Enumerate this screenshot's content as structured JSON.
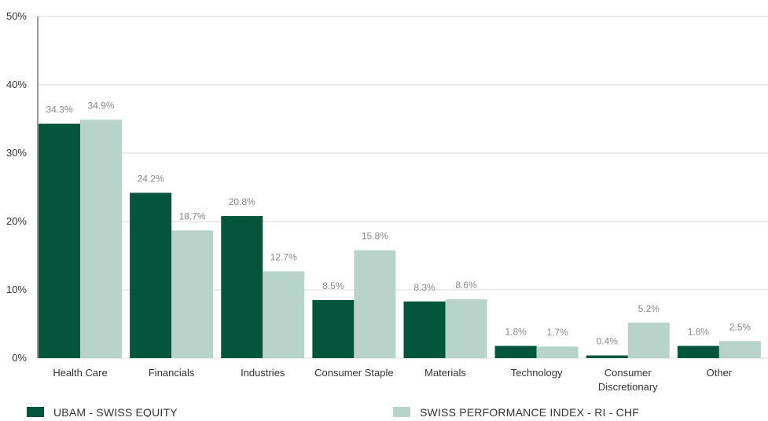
{
  "chart_data": {
    "type": "bar",
    "categories": [
      [
        "Health Care"
      ],
      [
        "Financials"
      ],
      [
        "Industries"
      ],
      [
        "Consumer Staple"
      ],
      [
        "Materials"
      ],
      [
        "Technology"
      ],
      [
        "Consumer",
        "Discretionary"
      ],
      [
        "Other"
      ]
    ],
    "series": [
      {
        "name": "UBAM - SWISS EQUITY",
        "color": "#03563b",
        "values": [
          34.3,
          24.2,
          20.8,
          8.5,
          8.3,
          1.8,
          0.4,
          1.8
        ],
        "labels": [
          "34.3%",
          "24.2%",
          "20.8%",
          "8.5%",
          "8.3%",
          "1.8%",
          "0.4%",
          "1.8%"
        ]
      },
      {
        "name": "SWISS PERFORMANCE INDEX - RI - CHF",
        "color": "#b8d3c9",
        "values": [
          34.9,
          18.7,
          12.7,
          15.8,
          8.6,
          1.7,
          5.2,
          2.5
        ],
        "labels": [
          "34.9%",
          "18.7%",
          "12.7%",
          "15.8%",
          "8.6%",
          "1.7%",
          "5.2%",
          "2.5%"
        ]
      }
    ],
    "yticks": [
      "0%",
      "10%",
      "20%",
      "30%",
      "40%",
      "50%"
    ],
    "ylim": [
      0,
      50
    ],
    "grid": true,
    "legend": "bottom"
  }
}
